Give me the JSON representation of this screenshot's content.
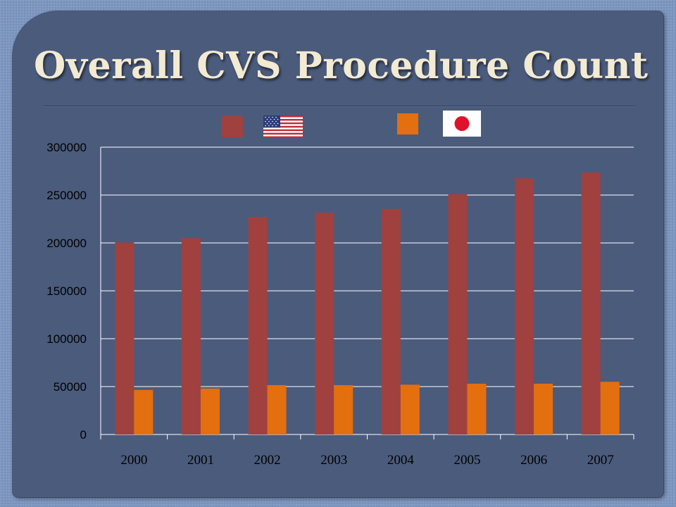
{
  "slide": {
    "title": "Overall CVS Procedure Count",
    "background_color": "#4b5b7c",
    "outer_color": "#7a93bd",
    "title_color": "#f2ead2"
  },
  "legend": {
    "items": [
      {
        "series": "us",
        "swatch_color": "#a0413f",
        "icon": "us-flag-icon"
      },
      {
        "series": "jp",
        "swatch_color": "#e46f0e",
        "icon": "japan-flag-icon"
      }
    ],
    "placement": "top"
  },
  "chart_data": {
    "type": "bar",
    "title": "",
    "xlabel": "",
    "ylabel": "",
    "categories": [
      "2000",
      "2001",
      "2002",
      "2003",
      "2004",
      "2005",
      "2006",
      "2007"
    ],
    "series": [
      {
        "color": "#a0413f",
        "legend_icon": "us-flag-icon",
        "values": [
          200500,
          205000,
          227000,
          231500,
          235500,
          251000,
          267500,
          273500
        ]
      },
      {
        "color": "#e46f0e",
        "legend_icon": "japan-flag-icon",
        "values": [
          46500,
          48000,
          51500,
          51500,
          52000,
          53000,
          53000,
          55000
        ]
      }
    ],
    "ylim": [
      0,
      300000
    ],
    "yticks": [
      "0",
      "50000",
      "100000",
      "150000",
      "200000",
      "250000",
      "300000"
    ],
    "grid": true,
    "gridline_color": "#ffffff"
  }
}
